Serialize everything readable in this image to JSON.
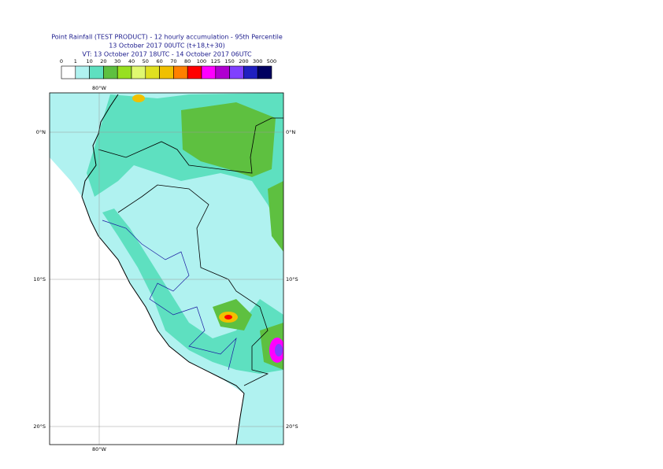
{
  "header": {
    "title": "Point Rainfall (TEST PRODUCT) - 12 hourly accumulation - 95th Percentile",
    "run": "13 October 2017 00UTC (t+18,t+30)",
    "valid": "VT: 13 October 2017 18UTC - 14 October 2017 06UTC"
  },
  "legend": {
    "thresholds": [
      "0",
      "1",
      "10",
      "20",
      "30",
      "40",
      "50",
      "60",
      "70",
      "80",
      "100",
      "125",
      "150",
      "200",
      "300",
      "500"
    ],
    "colors": [
      "#ffffff",
      "#b0f2f0",
      "#5ee0c0",
      "#5ec040",
      "#98e020",
      "#e0f870",
      "#e0e020",
      "#f0c000",
      "#ff8000",
      "#ff0000",
      "#ff00ff",
      "#b000d0",
      "#8040ff",
      "#2020c0",
      "#000060"
    ]
  },
  "map": {
    "lon_labels": [
      "80°W"
    ],
    "lat_labels": [
      "0°N",
      "10°S",
      "20°S"
    ]
  }
}
